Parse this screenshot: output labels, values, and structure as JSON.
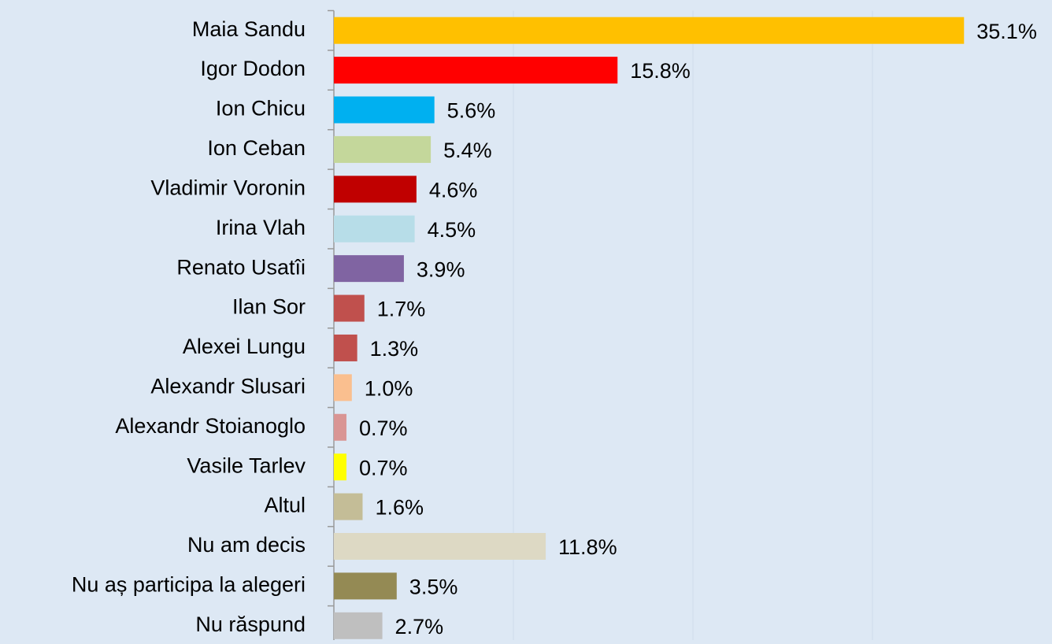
{
  "chart_data": {
    "type": "hbar",
    "categories": [
      "Maia Sandu",
      "Igor Dodon",
      "Ion Chicu",
      "Ion Ceban",
      "Vladimir Voronin",
      "Irina Vlah",
      "Renato Usatîi",
      "Ilan Sor",
      "Alexei Lungu",
      "Alexandr Slusari",
      "Alexandr Stoianoglo",
      "Vasile Tarlev",
      "Altul",
      "Nu am decis",
      "Nu aș participa la alegeri",
      "Nu răspund"
    ],
    "values": [
      35.1,
      15.8,
      5.6,
      5.4,
      4.6,
      4.5,
      3.9,
      1.7,
      1.3,
      1.0,
      0.7,
      0.7,
      1.6,
      11.8,
      3.5,
      2.7
    ],
    "value_labels": [
      "35.1%",
      "15.8%",
      "5.6%",
      "5.4%",
      "4.6%",
      "4.5%",
      "3.9%",
      "1.7%",
      "1.3%",
      "1.0%",
      "0.7%",
      "0.7%",
      "1.6%",
      "11.8%",
      "3.5%",
      "2.7%"
    ],
    "colors": [
      "#ffc000",
      "#ff0000",
      "#00b0f0",
      "#c4d79b",
      "#c00000",
      "#b7dde8",
      "#8064a2",
      "#c0504d",
      "#c0504d",
      "#fabf8f",
      "#d99594",
      "#ffff00",
      "#c4bd97",
      "#ddd9c4",
      "#948a54",
      "#bfbfbf"
    ],
    "xlim": [
      0,
      40
    ],
    "xticks": [
      0,
      10,
      20,
      30
    ],
    "grid": true
  }
}
